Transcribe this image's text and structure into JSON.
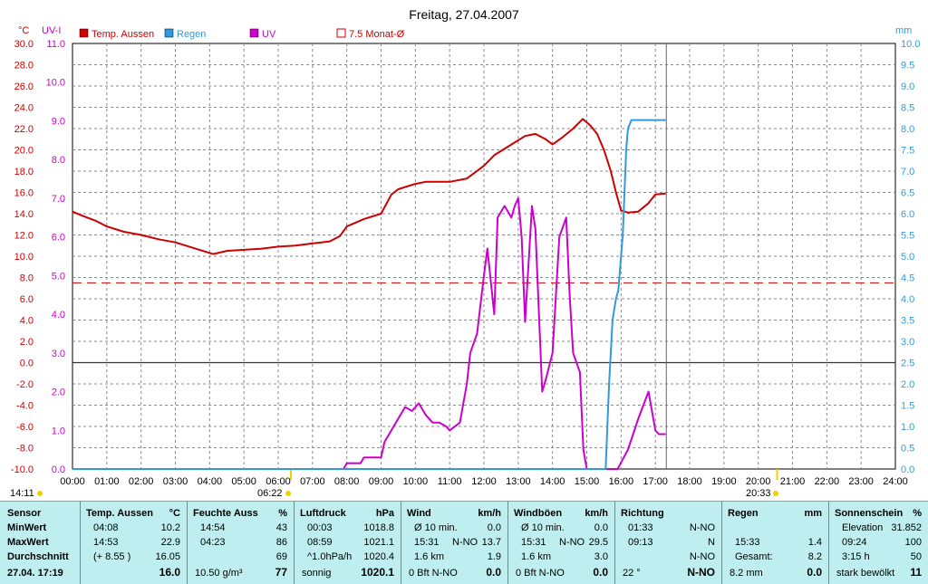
{
  "title": "Freitag, 27.04.2007",
  "units": {
    "left_temp": "°C",
    "left_uv": "UV-I",
    "right": "mm"
  },
  "legend": [
    {
      "label": "Temp. Aussen",
      "color": "#cc0000",
      "kind": "filled"
    },
    {
      "label": "Regen",
      "color": "#3399dd",
      "kind": "filled"
    },
    {
      "label": "UV",
      "color": "#cc00cc",
      "kind": "filled"
    },
    {
      "label": "7.5 Monat-Ø",
      "color": "#cc0000",
      "kind": "outline"
    }
  ],
  "markers": {
    "left_time": "14:11",
    "sunrise": "06:22",
    "sunset": "20:33"
  },
  "chart_data": {
    "type": "line",
    "x_unit": "hours",
    "xlim": [
      0,
      24
    ],
    "x_ticks": [
      "00:00",
      "01:00",
      "02:00",
      "03:00",
      "04:00",
      "05:00",
      "06:00",
      "07:00",
      "08:00",
      "09:00",
      "10:00",
      "11:00",
      "12:00",
      "13:00",
      "14:00",
      "15:00",
      "16:00",
      "17:00",
      "18:00",
      "19:00",
      "20:00",
      "21:00",
      "22:00",
      "23:00",
      "24:00"
    ],
    "temp_axis": {
      "min": -10,
      "max": 30,
      "ticks": [
        "30.0",
        "28.0",
        "26.0",
        "24.0",
        "22.0",
        "20.0",
        "18.0",
        "16.0",
        "14.0",
        "12.0",
        "10.0",
        "8.0",
        "6.0",
        "4.0",
        "2.0",
        "0.0",
        "-2.0",
        "-4.0",
        "-6.0",
        "-8.0",
        "-10.0"
      ]
    },
    "uv_axis": {
      "min": 0,
      "max": 11,
      "ticks": [
        "11.0",
        "10.0",
        "9.0",
        "8.0",
        "7.0",
        "6.0",
        "5.0",
        "4.0",
        "3.0",
        "2.0",
        "1.0",
        "0.0"
      ]
    },
    "rain_axis": {
      "min": 0,
      "max": 10,
      "ticks": [
        "10.0",
        "9.5",
        "9.0",
        "8.5",
        "8.0",
        "7.5",
        "7.0",
        "6.5",
        "6.0",
        "5.5",
        "5.0",
        "4.5",
        "4.0",
        "3.5",
        "3.0",
        "2.5",
        "2.0",
        "1.5",
        "1.0",
        "0.5",
        "0.0"
      ]
    },
    "current_time": 17.32,
    "monthly_avg_temp": 7.5,
    "series": [
      {
        "name": "Temp. Aussen",
        "color": "#cc0000",
        "axis": "temp",
        "x": [
          0,
          0.3,
          0.7,
          1,
          1.5,
          2,
          2.5,
          3,
          3.5,
          4.1,
          4.5,
          5,
          5.5,
          6,
          6.5,
          7,
          7.5,
          7.8,
          8,
          8.5,
          9,
          9.3,
          9.5,
          10,
          10.3,
          10.6,
          11,
          11.5,
          12,
          12.3,
          12.8,
          13.2,
          13.5,
          13.8,
          14,
          14.3,
          14.6,
          14.88,
          15.1,
          15.3,
          15.5,
          15.7,
          15.85,
          16,
          16.2,
          16.5,
          16.8,
          17,
          17.3
        ],
        "values": [
          14.2,
          13.8,
          13.3,
          12.8,
          12.3,
          12.0,
          11.6,
          11.3,
          10.8,
          10.2,
          10.5,
          10.6,
          10.7,
          10.9,
          11.0,
          11.2,
          11.4,
          11.9,
          12.8,
          13.5,
          14.0,
          15.8,
          16.3,
          16.8,
          17.0,
          17.0,
          17.0,
          17.3,
          18.5,
          19.5,
          20.5,
          21.3,
          21.5,
          21.0,
          20.5,
          21.2,
          22.0,
          22.9,
          22.3,
          21.5,
          20.0,
          18.0,
          16.0,
          14.3,
          14.1,
          14.2,
          15.0,
          15.8,
          15.9
        ]
      },
      {
        "name": "UV",
        "color": "#cc00cc",
        "axis": "uv",
        "x": [
          0,
          7.9,
          8.0,
          8.4,
          8.5,
          9.0,
          9.1,
          9.3,
          9.5,
          9.7,
          9.9,
          10.1,
          10.3,
          10.5,
          10.7,
          10.9,
          11.0,
          11.3,
          11.5,
          11.6,
          11.8,
          12.0,
          12.1,
          12.3,
          12.4,
          12.6,
          12.8,
          12.9,
          13.0,
          13.1,
          13.2,
          13.4,
          13.5,
          13.7,
          13.8,
          14.0,
          14.2,
          14.4,
          14.5,
          14.6,
          14.8,
          14.9,
          15.0,
          15.1,
          15.2,
          15.3,
          15.6,
          15.7,
          15.9,
          16.2,
          16.5,
          16.8,
          16.9,
          17.0,
          17.1,
          17.2,
          17.3
        ],
        "values": [
          0,
          0,
          0.15,
          0.15,
          0.3,
          0.3,
          0.7,
          1.0,
          1.3,
          1.6,
          1.5,
          1.7,
          1.4,
          1.2,
          1.2,
          1.1,
          1.0,
          1.2,
          2.2,
          3.0,
          3.5,
          5.0,
          5.7,
          4.0,
          6.5,
          6.8,
          6.5,
          6.8,
          7.0,
          6.0,
          3.8,
          6.8,
          6.2,
          2.0,
          2.3,
          3.0,
          6.0,
          6.5,
          4.5,
          3.0,
          2.5,
          0.5,
          0,
          0,
          0,
          0,
          0,
          0,
          0,
          0.5,
          1.3,
          2.0,
          1.5,
          1.0,
          0.9,
          0.9,
          0.9
        ]
      },
      {
        "name": "Regen",
        "color": "#3399dd",
        "axis": "rain",
        "x": [
          0,
          15.55,
          15.65,
          15.75,
          15.85,
          15.92,
          16.0,
          16.05,
          16.1,
          16.15,
          16.2,
          16.3,
          16.4,
          17.3
        ],
        "values": [
          0,
          0,
          2,
          3.5,
          4,
          4.2,
          5,
          5.5,
          6.5,
          7.5,
          8.0,
          8.2,
          8.2,
          8.2
        ]
      }
    ]
  },
  "table": {
    "sensor": {
      "header": "Sensor",
      "rows": [
        "MinWert",
        "MaxWert",
        "Durchschnitt"
      ],
      "footer": "27.04. 17:19"
    },
    "temp": {
      "header": "Temp. Aussen",
      "unit": "°C",
      "rows": [
        [
          "04:08",
          "10.2"
        ],
        [
          "14:53",
          "22.9"
        ],
        [
          "(+ 8.55 )",
          "16.05"
        ]
      ],
      "footer": "16.0"
    },
    "humidity": {
      "header": "Feuchte Auss",
      "unit": "%",
      "rows": [
        [
          "14:54",
          "43"
        ],
        [
          "04:23",
          "86"
        ],
        [
          "",
          "69"
        ]
      ],
      "footer_left": "10.50 g/m³",
      "footer": "77"
    },
    "pressure": {
      "header": "Luftdruck",
      "unit": "hPa",
      "rows": [
        [
          "00:03",
          "1018.8"
        ],
        [
          "08:59",
          "1021.1"
        ],
        [
          "^1.0hPa/h",
          "1020.4"
        ]
      ],
      "footer_left": "sonnig",
      "footer": "1020.1"
    },
    "wind": {
      "header": "Wind",
      "unit": "km/h",
      "rows": [
        [
          "Ø 10 min.",
          "",
          "0.0"
        ],
        [
          "15:31",
          "N-NO",
          "13.7"
        ],
        [
          "1.6 km",
          "",
          "1.9"
        ]
      ],
      "footer_left": "0 Bft N-NO",
      "footer": "0.0"
    },
    "gust": {
      "header": "Windböen",
      "unit": "km/h",
      "rows": [
        [
          "Ø 10 min.",
          "",
          "0.0"
        ],
        [
          "15:31",
          "N-NO",
          "29.5"
        ],
        [
          "1.6 km",
          "",
          "3.0"
        ]
      ],
      "footer_left": "0 Bft N-NO",
      "footer": "0.0"
    },
    "direction": {
      "header": "Richtung",
      "rows": [
        [
          "01:33",
          "N-NO"
        ],
        [
          "09:13",
          "N"
        ],
        [
          "",
          "N-NO"
        ]
      ],
      "footer_left": "22 °",
      "footer": "N-NO"
    },
    "rain": {
      "header": "Regen",
      "unit": "mm",
      "rows": [
        [
          "",
          ""
        ],
        [
          "15:33",
          "1.4"
        ],
        [
          "Gesamt:",
          "8.2"
        ]
      ],
      "footer_left": "8.2 mm",
      "footer": "0.0"
    },
    "sun": {
      "header": "Sonnenschein",
      "unit": "%",
      "rows": [
        [
          "Elevation",
          "31.852"
        ],
        [
          "09:24",
          "100"
        ],
        [
          "3:15 h",
          "50"
        ]
      ],
      "footer_left": "stark bewölkt",
      "footer": "11"
    }
  }
}
